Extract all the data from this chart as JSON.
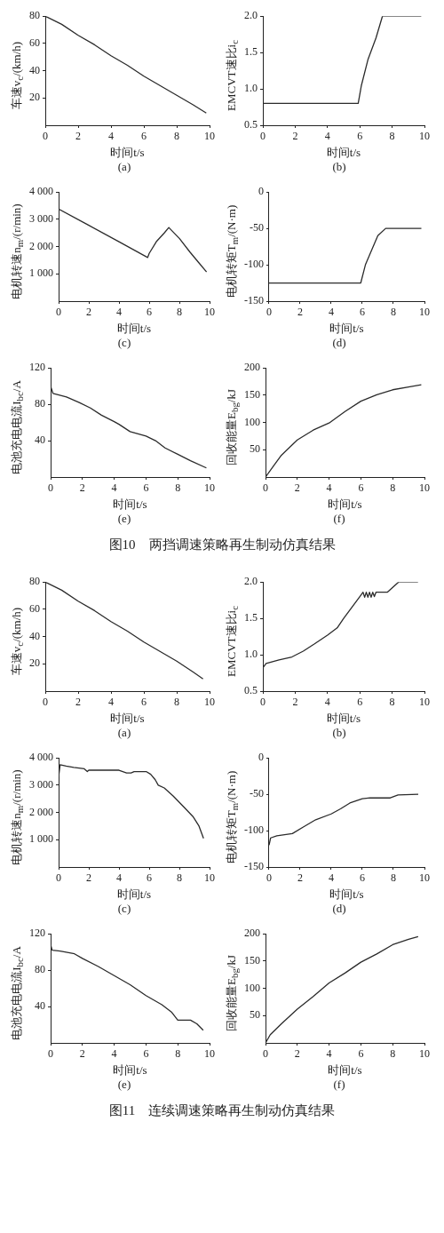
{
  "chart_data": [
    {
      "type": "line",
      "title": "(a)",
      "xlabel": "时间t/s",
      "ylabel": "车速v$_{c}$/(km/h)",
      "color": "#2b2b2b",
      "x": [
        0,
        1,
        2,
        3,
        4,
        5,
        6,
        7,
        8,
        9,
        9.8
      ],
      "values": [
        80,
        74,
        66,
        59,
        51,
        44,
        36,
        29,
        22,
        15,
        9
      ],
      "xlim": [
        0,
        10
      ],
      "xticks": [
        0,
        2,
        4,
        6,
        8,
        10
      ],
      "ylim": [
        0,
        80
      ],
      "yticks": [
        20,
        40,
        60,
        80
      ]
    },
    {
      "type": "line",
      "title": "(b)",
      "xlabel": "时间t/s",
      "ylabel": "EMCVT速比i$_{c}$",
      "color": "#2b2b2b",
      "x": [
        0,
        5.9,
        6.1,
        6.5,
        7.0,
        7.4,
        9.8
      ],
      "values": [
        0.8,
        0.8,
        1.05,
        1.4,
        1.7,
        2.0,
        2.0
      ],
      "xlim": [
        0,
        10
      ],
      "xticks": [
        0,
        2,
        4,
        6,
        8,
        10
      ],
      "ylim": [
        0.5,
        2.0
      ],
      "yticks": [
        {
          "value": 0.5,
          "label": "0.5"
        },
        {
          "value": 1,
          "label": "1.0"
        },
        {
          "value": 1.5,
          "label": "1.5"
        },
        {
          "value": 2,
          "label": "2.0"
        }
      ]
    },
    {
      "type": "line",
      "title": "(c)",
      "xlabel": "时间t/s",
      "ylabel": "电机转速n$_{m}$/(r/min)",
      "color": "#2b2b2b",
      "x": [
        0,
        2,
        4,
        5.9,
        6.0,
        6.5,
        7.0,
        7.3,
        8.0,
        8.7,
        9.3,
        9.8
      ],
      "values": [
        3380,
        2780,
        2180,
        1600,
        1750,
        2200,
        2500,
        2700,
        2300,
        1800,
        1400,
        1070
      ],
      "xlim": [
        0,
        10
      ],
      "xticks": [
        0,
        2,
        4,
        6,
        8,
        10
      ],
      "ylim": [
        0,
        4000
      ],
      "yticks": [
        {
          "value": 1000,
          "label": "1 000"
        },
        {
          "value": 2000,
          "label": "2 000"
        },
        {
          "value": 3000,
          "label": "3 000"
        },
        {
          "value": 4000,
          "label": "4 000"
        }
      ]
    },
    {
      "type": "line",
      "title": "(d)",
      "xlabel": "时间t/s",
      "ylabel": "电机转矩T$_{m}$/(N·m)",
      "color": "#2b2b2b",
      "x": [
        0,
        5.9,
        6.2,
        6.7,
        7.0,
        7.5,
        9.8
      ],
      "values": [
        -125,
        -125,
        -100,
        -75,
        -60,
        -50,
        -50
      ],
      "xlim": [
        0,
        10
      ],
      "xticks": [
        0,
        2,
        4,
        6,
        8,
        10
      ],
      "ylim": [
        -150,
        0
      ],
      "yticks": [
        -150,
        -100,
        -50,
        0
      ]
    },
    {
      "type": "line",
      "title": "(e)",
      "xlabel": "时间t/s",
      "ylabel": "电池充电电流I$_{bc}$/A",
      "color": "#2b2b2b",
      "x": [
        0,
        0.15,
        1,
        1.8,
        2.5,
        3.2,
        4.0,
        4.3,
        5.0,
        6.0,
        6.6,
        7.2,
        8.0,
        8.8,
        9.8
      ],
      "values": [
        100,
        92,
        88,
        82,
        76,
        68,
        61,
        58,
        50,
        45,
        40,
        32,
        25,
        18,
        10
      ],
      "xlim": [
        0,
        10
      ],
      "xticks": [
        0,
        2,
        4,
        6,
        8,
        10
      ],
      "ylim": [
        0,
        120
      ],
      "yticks": [
        40,
        80,
        120
      ]
    },
    {
      "type": "line",
      "title": "(f)",
      "xlabel": "时间t/s",
      "ylabel": "回收能量E$_{bg}$/kJ",
      "color": "#2b2b2b",
      "x": [
        0,
        0.5,
        1,
        2,
        3,
        4,
        5,
        6,
        7,
        8,
        9,
        9.8
      ],
      "values": [
        0,
        20,
        40,
        68,
        86,
        99,
        120,
        139,
        151,
        160,
        165,
        169
      ],
      "xlim": [
        0,
        10
      ],
      "xticks": [
        0,
        2,
        4,
        6,
        8,
        10
      ],
      "ylim": [
        0,
        200
      ],
      "yticks": [
        50,
        100,
        150,
        200
      ],
      "annotations": [
        "图10　两挡调速策略再生制动仿真结果"
      ]
    },
    {
      "type": "line",
      "title": "(a)",
      "xlabel": "时间t/s",
      "ylabel": "车速v$_{c}$/(km/h)",
      "color": "#2b2b2b",
      "x": [
        0,
        1,
        2,
        3,
        4,
        5,
        6,
        7,
        8,
        9,
        9.6
      ],
      "values": [
        80,
        74,
        66,
        59,
        51,
        44,
        36,
        29,
        22,
        14,
        9
      ],
      "xlim": [
        0,
        10
      ],
      "xticks": [
        0,
        2,
        4,
        6,
        8,
        10
      ],
      "ylim": [
        0,
        80
      ],
      "yticks": [
        20,
        40,
        60,
        80
      ]
    },
    {
      "type": "line",
      "title": "(b)",
      "xlabel": "时间t/s",
      "ylabel": "EMCVT速比i$_{c}$",
      "color": "#2b2b2b",
      "x": [
        0,
        0.2,
        0.5,
        1,
        1.8,
        2.5,
        3.2,
        4,
        4.6,
        5.0,
        5.5,
        6.0,
        6.2,
        6.3,
        6.4,
        6.5,
        6.6,
        6.7,
        6.8,
        6.9,
        7.0,
        7.7,
        8.4,
        9.6
      ],
      "values": [
        0.82,
        0.88,
        0.9,
        0.93,
        0.97,
        1.05,
        1.15,
        1.27,
        1.37,
        1.5,
        1.65,
        1.8,
        1.86,
        1.79,
        1.86,
        1.79,
        1.86,
        1.79,
        1.86,
        1.8,
        1.86,
        1.86,
        2.0,
        2.0
      ],
      "xlim": [
        0,
        10
      ],
      "xticks": [
        0,
        2,
        4,
        6,
        8,
        10
      ],
      "ylim": [
        0.5,
        2.0
      ],
      "yticks": [
        {
          "value": 0.5,
          "label": "0.5"
        },
        {
          "value": 1,
          "label": "1.0"
        },
        {
          "value": 1.5,
          "label": "1.5"
        },
        {
          "value": 2,
          "label": "2.0"
        }
      ]
    },
    {
      "type": "line",
      "title": "(c)",
      "xlabel": "时间t/s",
      "ylabel": "电机转速n$_{m}$/(r/min)",
      "color": "#2b2b2b",
      "x": [
        0,
        0.1,
        0.5,
        1,
        1.7,
        1.9,
        2.0,
        4.0,
        4.5,
        4.8,
        5.0,
        5.8,
        6.1,
        6.4,
        6.6,
        7.0,
        7.6,
        8.3,
        8.9,
        9.3,
        9.6
      ],
      "values": [
        3300,
        3750,
        3700,
        3650,
        3600,
        3500,
        3550,
        3550,
        3450,
        3450,
        3500,
        3500,
        3400,
        3200,
        3000,
        2900,
        2600,
        2200,
        1850,
        1500,
        1050
      ],
      "xlim": [
        0,
        10
      ],
      "xticks": [
        0,
        2,
        4,
        6,
        8,
        10
      ],
      "ylim": [
        0,
        4000
      ],
      "yticks": [
        {
          "value": 1000,
          "label": "1 000"
        },
        {
          "value": 2000,
          "label": "2 000"
        },
        {
          "value": 3000,
          "label": "3 000"
        },
        {
          "value": 4000,
          "label": "4 000"
        }
      ]
    },
    {
      "type": "line",
      "title": "(d)",
      "xlabel": "时间t/s",
      "ylabel": "电机转矩T$_{m}$/(N·m)",
      "color": "#2b2b2b",
      "x": [
        0,
        0.1,
        0.5,
        1.5,
        2.2,
        3.0,
        4,
        4.6,
        5.2,
        6,
        6.5,
        7.8,
        8.3,
        9.6
      ],
      "values": [
        -120,
        -110,
        -107,
        -104,
        -95,
        -85,
        -77,
        -70,
        -62,
        -56,
        -55,
        -55,
        -51,
        -50
      ],
      "xlim": [
        0,
        10
      ],
      "xticks": [
        0,
        2,
        4,
        6,
        8,
        10
      ],
      "ylim": [
        -150,
        0
      ],
      "yticks": [
        -150,
        -100,
        -50,
        0
      ]
    },
    {
      "type": "line",
      "title": "(e)",
      "xlabel": "时间t/s",
      "ylabel": "电池充电电流I$_{bc}$/A",
      "color": "#2b2b2b",
      "x": [
        0,
        0.1,
        0.6,
        1.5,
        2,
        3,
        4,
        5,
        6,
        7,
        7.6,
        8,
        8.8,
        9.2,
        9.6
      ],
      "values": [
        108,
        102,
        101,
        98,
        93,
        84,
        74,
        64,
        52,
        42,
        34,
        25,
        25,
        21,
        14
      ],
      "xlim": [
        0,
        10
      ],
      "xticks": [
        0,
        2,
        4,
        6,
        8,
        10
      ],
      "ylim": [
        0,
        120
      ],
      "yticks": [
        40,
        80,
        120
      ]
    },
    {
      "type": "line",
      "title": "(f)",
      "xlabel": "时间t/s",
      "ylabel": "回收能量E$_{bg}$/kJ",
      "color": "#2b2b2b",
      "x": [
        0,
        0.3,
        1,
        2,
        3,
        4,
        5,
        6,
        7,
        8,
        9,
        9.6
      ],
      "values": [
        0,
        15,
        35,
        62,
        85,
        110,
        128,
        148,
        163,
        180,
        190,
        195
      ],
      "xlim": [
        0,
        10
      ],
      "xticks": [
        0,
        2,
        4,
        6,
        8,
        10
      ],
      "ylim": [
        0,
        200
      ],
      "yticks": [
        50,
        100,
        150,
        200
      ],
      "annotations": [
        "图11　连续调速策略再生制动仿真结果"
      ]
    }
  ]
}
